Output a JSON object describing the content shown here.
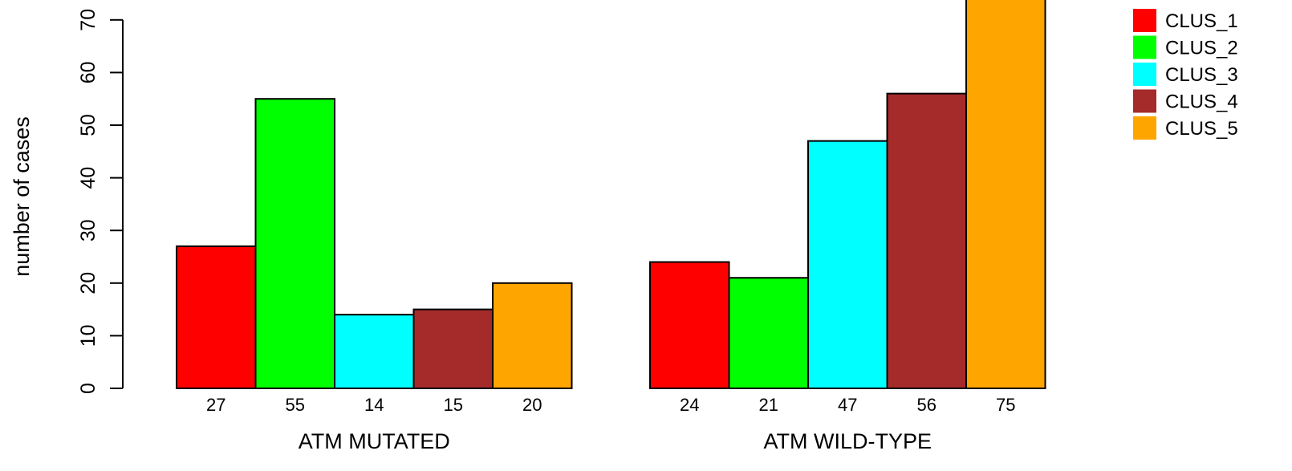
{
  "chart_data": {
    "type": "bar",
    "title": "",
    "xlabel": "",
    "ylabel": "number of cases",
    "ylim": [
      0,
      70
    ],
    "yticks": [
      0,
      10,
      20,
      30,
      40,
      50,
      60,
      70
    ],
    "grid": false,
    "legend_position": "top-right",
    "categories": [
      "ATM MUTATED",
      "ATM WILD-TYPE"
    ],
    "series": [
      {
        "name": "CLUS_1",
        "color": "#ff0000",
        "values": [
          27,
          24
        ]
      },
      {
        "name": "CLUS_2",
        "color": "#00ff00",
        "values": [
          55,
          21
        ]
      },
      {
        "name": "CLUS_3",
        "color": "#00ffff",
        "values": [
          14,
          47
        ]
      },
      {
        "name": "CLUS_4",
        "color": "#a52a2a",
        "values": [
          15,
          56
        ]
      },
      {
        "name": "CLUS_5",
        "color": "#ffa500",
        "values": [
          20,
          75
        ]
      }
    ]
  }
}
